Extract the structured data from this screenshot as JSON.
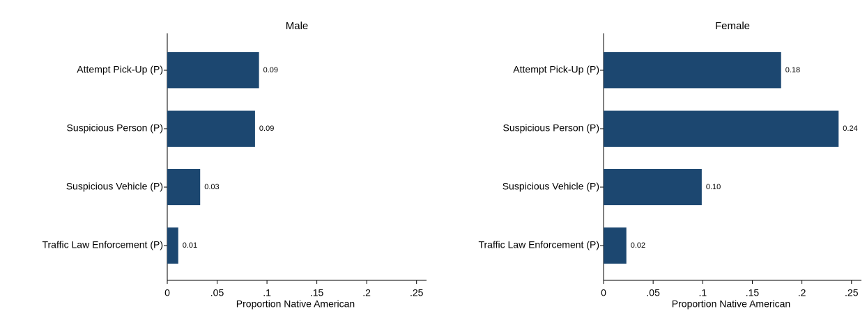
{
  "chart_data": [
    {
      "type": "barh",
      "title": "Male",
      "x_label": "Proportion Native American",
      "color": "#1c4770",
      "categories": [
        "Attempt Pick-Up (P)",
        "Suspicious Person (P)",
        "Suspicious Vehicle (P)",
        "Traffic Law Enforcement (P)"
      ],
      "values": [
        0.092,
        0.088,
        0.033,
        0.011
      ],
      "value_labels": [
        "0.09",
        "0.09",
        "0.03",
        "0.01"
      ],
      "xlim": [
        0,
        0.26
      ],
      "xticks": [
        0,
        {
          "value": 0.05,
          "label": ".05"
        },
        {
          "value": 0.1,
          "label": ".1"
        },
        {
          "value": 0.15,
          "label": ".15"
        },
        {
          "value": 0.2,
          "label": ".2"
        },
        {
          "value": 0.25,
          "label": ".25"
        }
      ]
    },
    {
      "type": "barh",
      "title": "Female",
      "x_label": "Proportion Native American",
      "color": "#1c4770",
      "categories": [
        "Attempt Pick-Up (P)",
        "Suspicious Person (P)",
        "Suspicious Vehicle (P)",
        "Traffic Law Enforcement (P)"
      ],
      "values": [
        0.179,
        0.237,
        0.099,
        0.023
      ],
      "value_labels": [
        "0.18",
        "0.24",
        "0.10",
        "0.02"
      ],
      "xlim": [
        0,
        0.26
      ],
      "xticks": [
        0,
        {
          "value": 0.05,
          "label": ".05"
        },
        {
          "value": 0.1,
          "label": ".1"
        },
        {
          "value": 0.15,
          "label": ".15"
        },
        {
          "value": 0.2,
          "label": ".2"
        },
        {
          "value": 0.25,
          "label": ".25"
        }
      ]
    }
  ]
}
